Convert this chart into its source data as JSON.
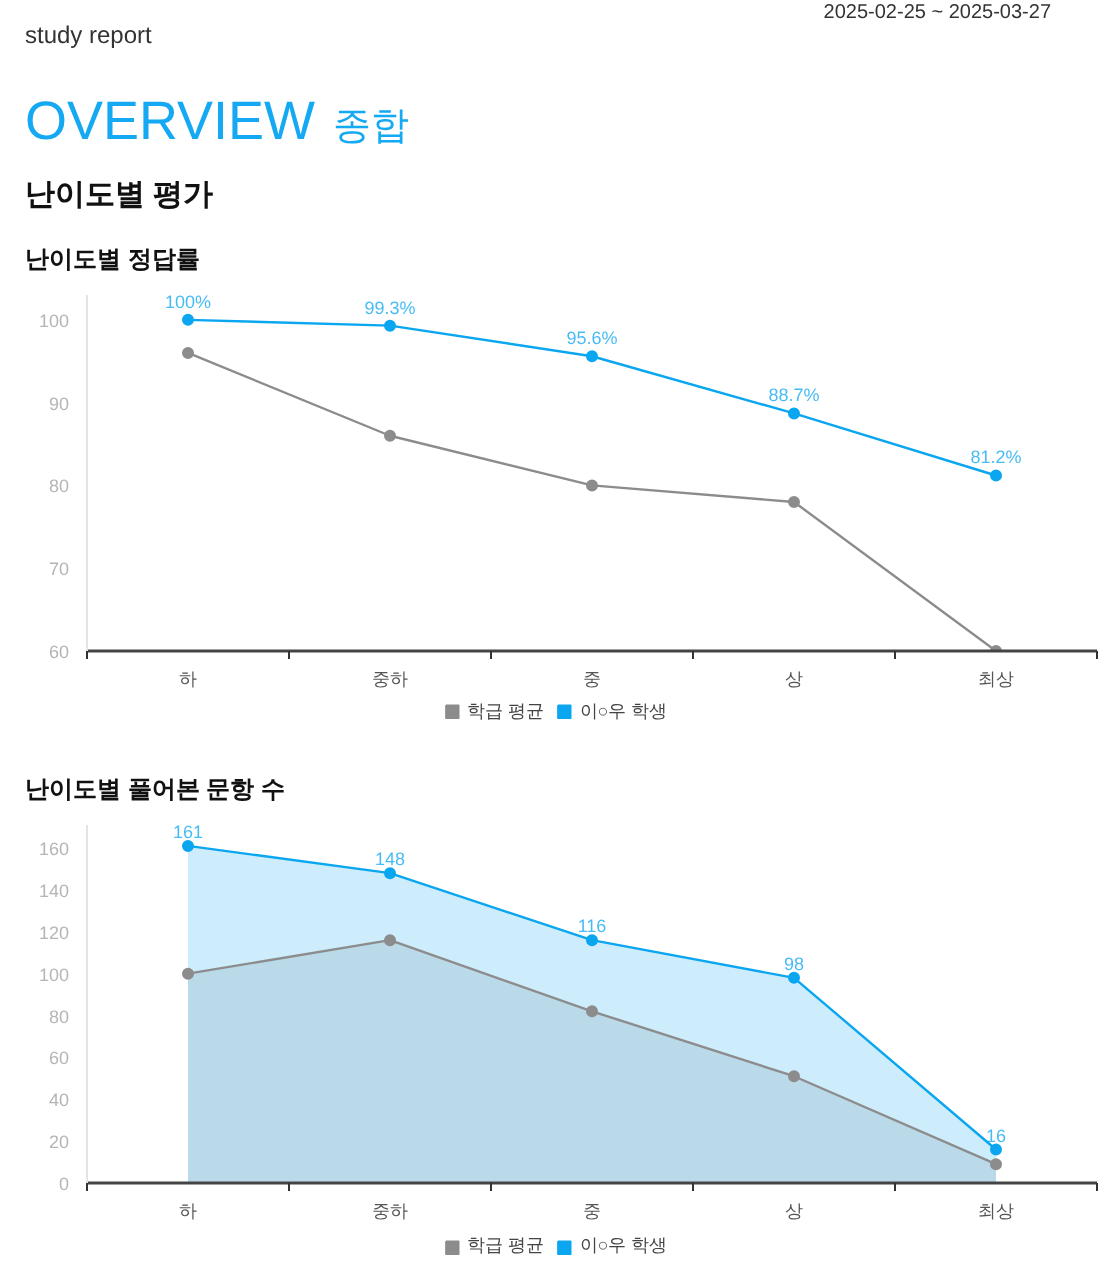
{
  "chart_data": [
    {
      "type": "line",
      "title": "난이도별 정답률",
      "annotations": [
        "study report",
        "2025-02-25 ~ 2025-03-27",
        "OVERVIEW",
        "종합",
        "난이도별 평가"
      ],
      "categories": [
        "하",
        "중하",
        "중",
        "상",
        "최상"
      ],
      "series": [
        {
          "name": "학급 평균",
          "color": "#8c8c8c",
          "values": [
            96,
            86,
            80,
            78,
            60
          ]
        },
        {
          "name": "이○우 학생",
          "color": "#0aa6f0",
          "values": [
            100,
            99.3,
            95.6,
            88.7,
            81.2
          ],
          "value_labels": [
            "100%",
            "99.3%",
            "95.6%",
            "88.7%",
            "81.2%"
          ]
        }
      ],
      "ylim": [
        60,
        103
      ],
      "yticks": [
        60,
        70,
        80,
        90,
        100
      ],
      "legend": "bottom",
      "marker": "circle"
    },
    {
      "type": "area",
      "title": "난이도별 풀어본 문항 수",
      "categories": [
        "하",
        "중하",
        "중",
        "상",
        "최상"
      ],
      "series": [
        {
          "name": "학급 평균",
          "color": "#8c8c8c",
          "values": [
            100,
            116,
            82,
            51,
            9
          ]
        },
        {
          "name": "이○우 학생",
          "color": "#0aa6f0",
          "values": [
            161,
            148,
            116,
            98,
            16
          ],
          "value_labels": [
            "161",
            "148",
            "116",
            "98",
            "16"
          ]
        }
      ],
      "ylim": [
        0,
        171
      ],
      "yticks": [
        0,
        20,
        40,
        60,
        80,
        100,
        120,
        140,
        160
      ],
      "legend": "bottom",
      "marker": "circle"
    }
  ]
}
